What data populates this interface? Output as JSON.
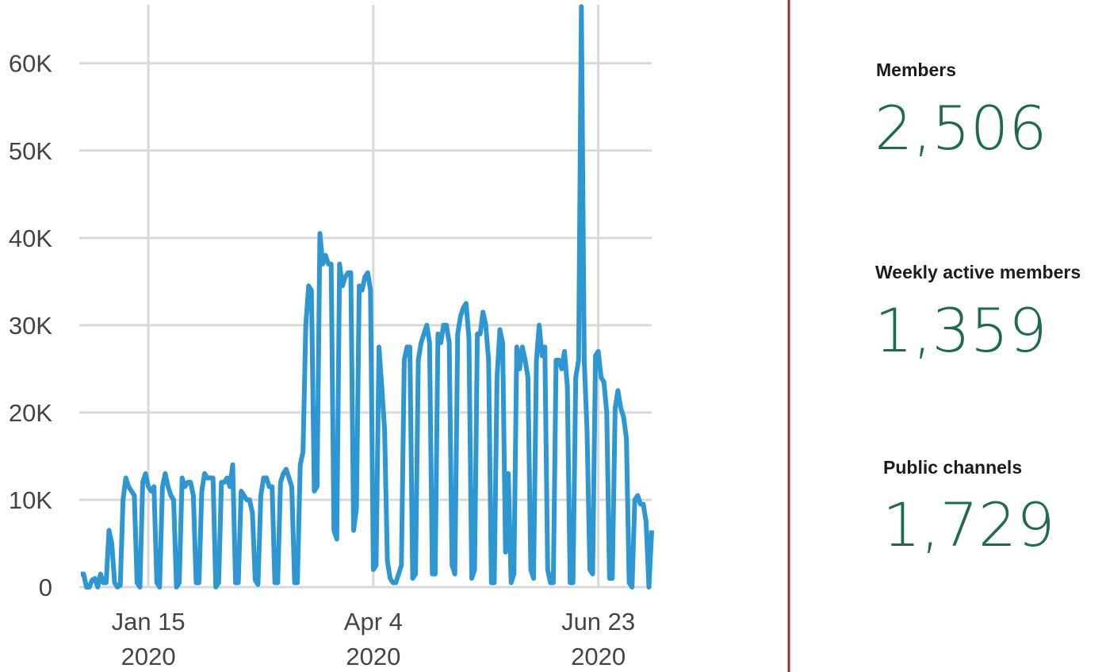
{
  "chart_data": {
    "type": "line",
    "x": [
      "2019-12-22",
      "2019-12-23",
      "2019-12-24",
      "2019-12-25",
      "2019-12-26",
      "2019-12-27",
      "2019-12-28",
      "2019-12-29",
      "2019-12-30",
      "2019-12-31",
      "2020-01-01",
      "2020-01-02",
      "2020-01-03",
      "2020-01-04",
      "2020-01-05",
      "2020-01-06",
      "2020-01-07",
      "2020-01-08",
      "2020-01-09",
      "2020-01-10",
      "2020-01-11",
      "2020-01-12",
      "2020-01-13",
      "2020-01-14",
      "2020-01-15",
      "2020-01-16",
      "2020-01-17",
      "2020-01-18",
      "2020-01-19",
      "2020-01-20",
      "2020-01-21",
      "2020-01-22",
      "2020-01-23",
      "2020-01-24",
      "2020-01-25",
      "2020-01-26",
      "2020-01-27",
      "2020-01-28",
      "2020-01-29",
      "2020-01-30",
      "2020-01-31",
      "2020-02-01",
      "2020-02-02",
      "2020-02-03",
      "2020-02-04",
      "2020-02-05",
      "2020-02-06",
      "2020-02-07",
      "2020-02-08",
      "2020-02-09",
      "2020-02-10",
      "2020-02-11",
      "2020-02-12",
      "2020-02-13",
      "2020-02-14",
      "2020-02-15",
      "2020-02-16",
      "2020-02-17",
      "2020-02-18",
      "2020-02-19",
      "2020-02-20",
      "2020-02-21",
      "2020-02-22",
      "2020-02-23",
      "2020-02-24",
      "2020-02-25",
      "2020-02-26",
      "2020-02-27",
      "2020-02-28",
      "2020-02-29",
      "2020-03-01",
      "2020-03-02",
      "2020-03-03",
      "2020-03-04",
      "2020-03-05",
      "2020-03-06",
      "2020-03-07",
      "2020-03-08",
      "2020-03-09",
      "2020-03-10",
      "2020-03-11",
      "2020-03-12",
      "2020-03-13",
      "2020-03-14",
      "2020-03-15",
      "2020-03-16",
      "2020-03-17",
      "2020-03-18",
      "2020-03-19",
      "2020-03-20",
      "2020-03-21",
      "2020-03-22",
      "2020-03-23",
      "2020-03-24",
      "2020-03-25",
      "2020-03-26",
      "2020-03-27",
      "2020-03-28",
      "2020-03-29",
      "2020-03-30",
      "2020-03-31",
      "2020-04-01",
      "2020-04-02",
      "2020-04-03",
      "2020-04-04",
      "2020-04-05",
      "2020-04-06",
      "2020-04-07",
      "2020-04-08",
      "2020-04-09",
      "2020-04-10",
      "2020-04-11",
      "2020-04-12",
      "2020-04-13",
      "2020-04-14",
      "2020-04-15",
      "2020-04-16",
      "2020-04-17",
      "2020-04-18",
      "2020-04-19",
      "2020-04-20",
      "2020-04-21",
      "2020-04-22",
      "2020-04-23",
      "2020-04-24",
      "2020-04-25",
      "2020-04-26",
      "2020-04-27",
      "2020-04-28",
      "2020-04-29",
      "2020-04-30",
      "2020-05-01",
      "2020-05-02",
      "2020-05-03",
      "2020-05-04",
      "2020-05-05",
      "2020-05-06",
      "2020-05-07",
      "2020-05-08",
      "2020-05-09",
      "2020-05-10",
      "2020-05-11",
      "2020-05-12",
      "2020-05-13",
      "2020-05-14",
      "2020-05-15",
      "2020-05-16",
      "2020-05-17",
      "2020-05-18",
      "2020-05-19",
      "2020-05-20",
      "2020-05-21",
      "2020-05-22",
      "2020-05-23",
      "2020-05-24",
      "2020-05-25",
      "2020-05-26",
      "2020-05-27",
      "2020-05-28",
      "2020-05-29",
      "2020-05-30",
      "2020-05-31",
      "2020-06-01",
      "2020-06-02",
      "2020-06-03",
      "2020-06-04",
      "2020-06-05",
      "2020-06-06",
      "2020-06-07",
      "2020-06-08",
      "2020-06-09",
      "2020-06-10",
      "2020-06-11",
      "2020-06-12",
      "2020-06-13",
      "2020-06-14",
      "2020-06-15",
      "2020-06-16",
      "2020-06-17",
      "2020-06-18",
      "2020-06-19",
      "2020-06-20",
      "2020-06-21",
      "2020-06-22",
      "2020-06-23",
      "2020-06-24",
      "2020-06-25",
      "2020-06-26",
      "2020-06-27",
      "2020-06-28",
      "2020-06-29",
      "2020-06-30",
      "2020-07-01",
      "2020-07-02",
      "2020-07-03",
      "2020-07-04",
      "2020-07-05",
      "2020-07-06",
      "2020-07-07",
      "2020-07-08",
      "2020-07-09",
      "2020-07-10",
      "2020-07-11",
      "2020-07-12"
    ],
    "values": [
      1500,
      1500,
      0,
      0,
      800,
      1000,
      0,
      1500,
      500,
      500,
      6500,
      5000,
      500,
      0,
      200,
      10000,
      12500,
      11500,
      11000,
      10500,
      500,
      0,
      12000,
      13000,
      11500,
      11000,
      11500,
      500,
      0,
      11500,
      13000,
      11500,
      10500,
      10000,
      0,
      500,
      12500,
      11500,
      12000,
      12000,
      10500,
      500,
      500,
      11000,
      13000,
      12500,
      12500,
      12500,
      0,
      500,
      12000,
      12000,
      12500,
      11500,
      14000,
      500,
      500,
      11000,
      10500,
      10000,
      10000,
      8500,
      800,
      300,
      10500,
      12500,
      12500,
      11500,
      11500,
      500,
      500,
      12000,
      13000,
      13500,
      12500,
      11500,
      500,
      500,
      14000,
      15500,
      30000,
      34500,
      34000,
      11000,
      11500,
      40500,
      37000,
      38000,
      37000,
      37000,
      6500,
      5500,
      37000,
      34500,
      35500,
      36000,
      36000,
      6500,
      9000,
      34500,
      34000,
      35500,
      36000,
      34000,
      2000,
      2500,
      27500,
      23000,
      18000,
      3000,
      1000,
      500,
      500,
      1500,
      2500,
      26000,
      27500,
      27500,
      1000,
      1500,
      26000,
      28000,
      29000,
      30000,
      28000,
      1500,
      1500,
      29000,
      28000,
      30000,
      30000,
      28000,
      2500,
      1500,
      29000,
      31000,
      32000,
      32500,
      28500,
      1000,
      2000,
      29000,
      29000,
      31500,
      30000,
      26000,
      500,
      500,
      24000,
      29500,
      28000,
      4000,
      13000,
      500,
      1500,
      27500,
      25000,
      27500,
      26000,
      24000,
      2000,
      1000,
      26000,
      30000,
      26500,
      27500,
      2000,
      500,
      500,
      26000,
      26000,
      25000,
      27000,
      23000,
      500,
      500,
      24000,
      26000,
      66500,
      26000,
      18000,
      2000,
      1500,
      26500,
      27000,
      24000,
      23500,
      20000,
      1000,
      1000,
      20500,
      22500,
      20500,
      19500,
      17000,
      500,
      0,
      10000,
      10500,
      9500,
      9500,
      7500,
      0,
      6500
    ],
    "color": "#2e96d0",
    "xlim": [
      "2019-12-22",
      "2020-07-12"
    ],
    "xticks": [
      {
        "value": "2020-01-15",
        "label": [
          "Jan 15",
          "2020"
        ]
      },
      {
        "value": "2020-04-04",
        "label": [
          "Apr 4",
          "2020"
        ]
      },
      {
        "value": "2020-06-23",
        "label": [
          "Jun 23",
          "2020"
        ]
      }
    ],
    "ylim": [
      0,
      66700
    ],
    "yticks": [
      0,
      {
        "value": 10000,
        "label": "10K"
      },
      {
        "value": 20000,
        "label": "20K"
      },
      {
        "value": 30000,
        "label": "30K"
      },
      {
        "value": 40000,
        "label": "40K"
      },
      {
        "value": 50000,
        "label": "50K"
      },
      {
        "value": 60000,
        "label": "60K"
      }
    ],
    "grid": true
  },
  "stats": [
    {
      "label": "Members",
      "value": "2,506"
    },
    {
      "label": "Weekly active members",
      "value": "1,359"
    },
    {
      "label": "Public channels",
      "value": "1,729"
    }
  ]
}
